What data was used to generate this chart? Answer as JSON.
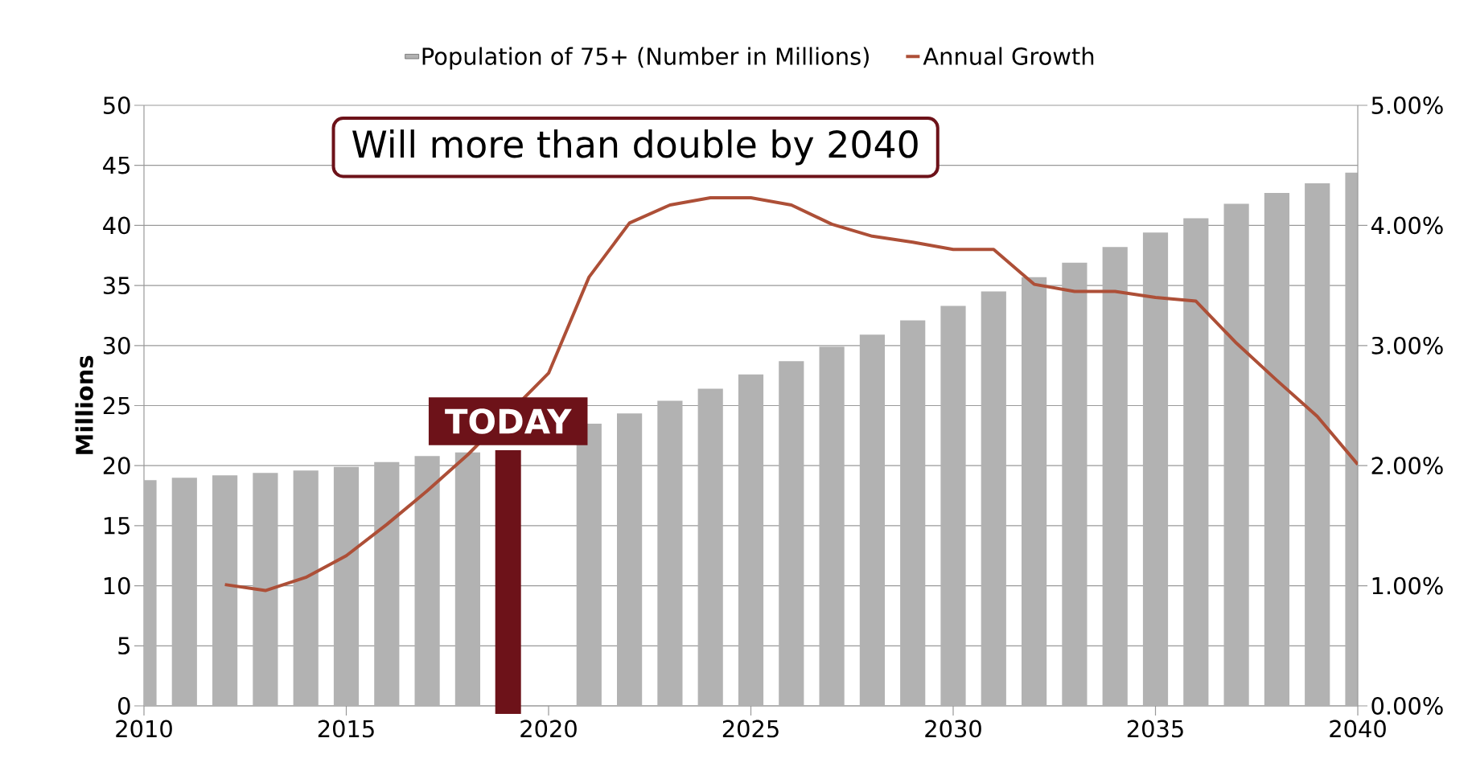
{
  "chart_data": {
    "type": "bar",
    "title": "Will more than double by 2040",
    "ylabel": "Millions",
    "x": [
      2010,
      2011,
      2012,
      2013,
      2014,
      2015,
      2016,
      2017,
      2018,
      2019,
      2020,
      2021,
      2022,
      2023,
      2024,
      2025,
      2026,
      2027,
      2028,
      2029,
      2030,
      2031,
      2032,
      2033,
      2034,
      2035,
      2036,
      2037,
      2038,
      2039,
      2040
    ],
    "series": [
      {
        "name": "Population of 75+ (Number in Millions)",
        "color": "#b2b2b2",
        "values": [
          18.8,
          19.0,
          19.2,
          19.4,
          19.6,
          19.9,
          20.3,
          20.8,
          21.1,
          null,
          null,
          23.5,
          24.35,
          25.4,
          26.4,
          27.6,
          28.7,
          29.9,
          30.9,
          32.1,
          33.3,
          34.5,
          35.7,
          36.9,
          38.2,
          39.4,
          40.6,
          41.8,
          42.7,
          43.5,
          44.4
        ]
      },
      {
        "name": "Annual Growth",
        "type": "line",
        "axis": "y2",
        "color": "#ad4f37",
        "values": [
          null,
          null,
          1.01,
          0.96,
          1.07,
          1.25,
          1.51,
          1.79,
          2.09,
          null,
          2.77,
          3.57,
          4.02,
          4.17,
          4.23,
          4.23,
          4.17,
          4.01,
          3.91,
          3.86,
          3.8,
          3.8,
          3.51,
          3.45,
          3.45,
          3.4,
          3.37,
          3.02,
          2.71,
          2.41,
          2.01
        ]
      }
    ],
    "xlim": [
      2010,
      2040
    ],
    "xticks": [
      2010,
      2015,
      2020,
      2025,
      2030,
      2035,
      2040
    ],
    "ylim": [
      0,
      50
    ],
    "yticks": [
      0,
      5,
      10,
      15,
      20,
      25,
      30,
      35,
      40,
      45,
      50
    ],
    "y2lim": [
      0,
      5
    ],
    "y2ticks": [
      {
        "value": 0,
        "label": "0.00%"
      },
      {
        "value": 1,
        "label": "1.00%"
      },
      {
        "value": 2,
        "label": "2.00%"
      },
      {
        "value": 3,
        "label": "3.00%"
      },
      {
        "value": 4,
        "label": "4.00%"
      },
      {
        "value": 5,
        "label": "5.00%"
      }
    ],
    "ref_lines": [
      {
        "axis": "x",
        "value": 2019,
        "label": "TODAY",
        "color": "#6d1219"
      }
    ],
    "grid": "y",
    "legend": "top"
  }
}
